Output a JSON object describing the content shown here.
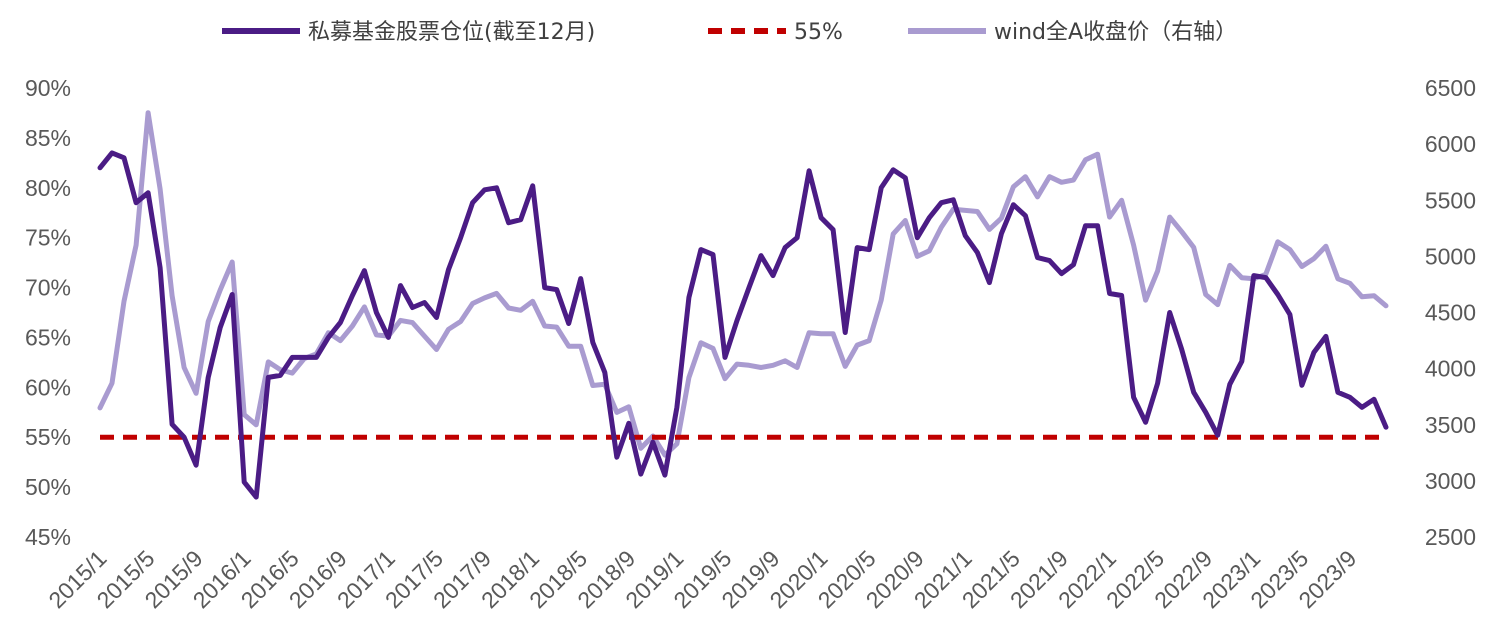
{
  "chart_data": {
    "type": "line",
    "legend_position": "top-center",
    "grid": false,
    "x_start": "2015/1",
    "x_end": "2023/12",
    "x_tick_labels": [
      "2015/1",
      "2015/5",
      "2015/9",
      "2016/1",
      "2016/5",
      "2016/9",
      "2017/1",
      "2017/5",
      "2017/9",
      "2018/1",
      "2018/5",
      "2018/9",
      "2019/1",
      "2019/5",
      "2019/9",
      "2020/1",
      "2020/5",
      "2020/9",
      "2021/1",
      "2021/5",
      "2021/9",
      "2022/1",
      "2022/5",
      "2022/9",
      "2023/1",
      "2023/5",
      "2023/9"
    ],
    "left_axis": {
      "tick_labels": [
        "45%",
        "50%",
        "55%",
        "60%",
        "65%",
        "70%",
        "75%",
        "80%",
        "85%",
        "90%"
      ],
      "ylim": [
        45,
        90
      ]
    },
    "right_axis": {
      "tick_labels": [
        "2500",
        "3000",
        "3500",
        "4000",
        "4500",
        "5000",
        "5500",
        "6000",
        "6500"
      ],
      "ylim": [
        2500,
        6500
      ]
    },
    "series": [
      {
        "name": "私募基金股票仓位(截至12月)",
        "axis": "left",
        "color": "#4B1C85",
        "style": "solid",
        "values": [
          82.0,
          83.5,
          83.0,
          78.5,
          79.5,
          72.0,
          56.3,
          55.0,
          52.2,
          61.0,
          66.0,
          69.3,
          50.5,
          49.0,
          61.0,
          61.2,
          63.0,
          63.0,
          63.0,
          65.0,
          66.5,
          69.2,
          71.7,
          67.5,
          65.0,
          70.2,
          68.0,
          68.5,
          67.0,
          71.8,
          75.0,
          78.5,
          79.8,
          80.0,
          76.5,
          76.8,
          80.2,
          70.0,
          69.8,
          66.4,
          70.9,
          64.5,
          61.5,
          53.0,
          56.4,
          51.3,
          54.5,
          51.2,
          58.0,
          69.0,
          73.8,
          73.3,
          63.0,
          66.7,
          70.0,
          73.2,
          71.2,
          74.0,
          75.0,
          81.7,
          77.0,
          75.8,
          65.5,
          74.0,
          73.8,
          80.0,
          81.8,
          81.0,
          75.0,
          77.0,
          78.5,
          78.8,
          75.2,
          73.5,
          70.5,
          75.4,
          78.3,
          77.2,
          73.0,
          72.7,
          71.4,
          72.3,
          76.2,
          76.2,
          69.4,
          69.2,
          59.0,
          56.5,
          60.4,
          67.5,
          63.8,
          59.5,
          57.5,
          55.2,
          60.3,
          62.6,
          71.2,
          71.0,
          69.3,
          67.3,
          60.2,
          63.5,
          65.1,
          59.5,
          59.0,
          58.0,
          58.8,
          56.0
        ]
      },
      {
        "name": "55%",
        "axis": "left",
        "color": "#C00000",
        "style": "dashed",
        "values": [
          55,
          55
        ]
      },
      {
        "name": "wind全A收盘价（右轴）",
        "axis": "right",
        "color": "#A99BD0",
        "style": "solid",
        "values": [
          3650,
          3870,
          4600,
          5100,
          6280,
          5600,
          4650,
          4010,
          3780,
          4420,
          4700,
          4950,
          3590,
          3500,
          4060,
          3990,
          3960,
          4090,
          4130,
          4320,
          4250,
          4380,
          4550,
          4300,
          4290,
          4430,
          4410,
          4290,
          4170,
          4350,
          4420,
          4580,
          4630,
          4670,
          4540,
          4520,
          4600,
          4380,
          4370,
          4200,
          4200,
          3850,
          3860,
          3610,
          3660,
          3290,
          3400,
          3230,
          3330,
          3920,
          4230,
          4180,
          3910,
          4040,
          4030,
          4010,
          4030,
          4070,
          4010,
          4320,
          4310,
          4310,
          4020,
          4210,
          4250,
          4610,
          5200,
          5320,
          5000,
          5050,
          5260,
          5420,
          5410,
          5400,
          5240,
          5340,
          5620,
          5710,
          5530,
          5710,
          5660,
          5680,
          5860,
          5910,
          5350,
          5500,
          5100,
          4610,
          4870,
          5350,
          5220,
          5080,
          4660,
          4570,
          4920,
          4810,
          4800,
          4840,
          5130,
          5060,
          4910,
          4980,
          5090,
          4800,
          4760,
          4640,
          4650,
          4560
        ]
      }
    ]
  }
}
